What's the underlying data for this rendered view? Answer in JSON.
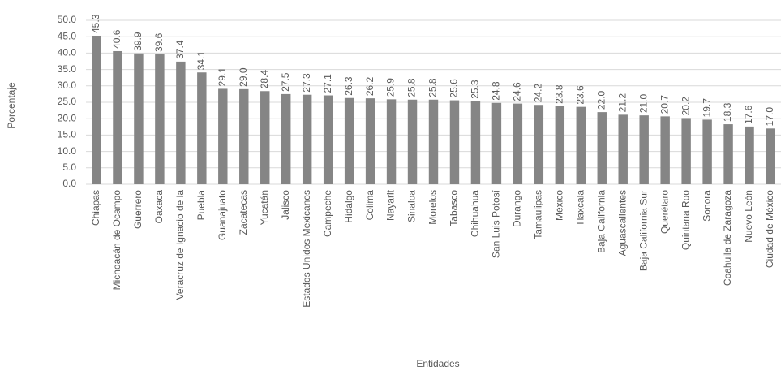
{
  "chart_data": {
    "type": "bar",
    "x_label": "Entidades",
    "y_label": "Porcentaje",
    "categories": [
      "Chiapas",
      "Michoacán de Ocampo",
      "Guerrero",
      "Oaxaca",
      "Veracruz de Ignacio de la",
      "Puebla",
      "Guanajuato",
      "Zacatecas",
      "Yucatán",
      "Jalisco",
      "Estados Unidos Mexicanos",
      "Campeche",
      "Hidalgo",
      "Colima",
      "Nayarit",
      "Sinaloa",
      "Morelos",
      "Tabasco",
      "Chihuahua",
      "San Luis Potosí",
      "Durango",
      "Tamaulipas",
      "México",
      "Tlaxcala",
      "Baja California",
      "Aguascalientes",
      "Baja California Sur",
      "Querétaro",
      "Quintana Roo",
      "Sonora",
      "Coahuila de Zaragoza",
      "Nuevo León",
      "Ciudad de México"
    ],
    "values": [
      45.3,
      40.6,
      39.9,
      39.6,
      37.4,
      34.1,
      29.1,
      29.0,
      28.4,
      27.5,
      27.3,
      27.1,
      26.3,
      26.2,
      25.9,
      25.8,
      25.8,
      25.6,
      25.3,
      24.8,
      24.6,
      24.2,
      23.8,
      23.6,
      22.0,
      21.2,
      21.0,
      20.7,
      20.2,
      19.7,
      18.3,
      17.6,
      17.0
    ],
    "value_labels": [
      "45.3",
      "40.6",
      "39.9",
      "39.6",
      "37.4",
      "34.1",
      "29.1",
      "29.0",
      "28.4",
      "27.5",
      "27.3",
      "27.1",
      "26.3",
      "26.2",
      "25.9",
      "25.8",
      "25.8",
      "25.6",
      "25.3",
      "24.8",
      "24.6",
      "24.2",
      "23.8",
      "23.6",
      "22.0",
      "21.2",
      "21.0",
      "20.7",
      "20.2",
      "19.7",
      "18.3",
      "17.6",
      "17.0"
    ],
    "color": "#858585",
    "ylim": [
      0,
      50
    ],
    "yticks": [
      {
        "value": 0,
        "label": "0.0"
      },
      {
        "value": 5,
        "label": "5.0"
      },
      {
        "value": 10,
        "label": "10.0"
      },
      {
        "value": 15,
        "label": "15.0"
      },
      {
        "value": 20,
        "label": "20.0"
      },
      {
        "value": 25,
        "label": "25.0"
      },
      {
        "value": 30,
        "label": "30.0"
      },
      {
        "value": 35,
        "label": "35.0"
      },
      {
        "value": 40,
        "label": "40.0"
      },
      {
        "value": 45,
        "label": "45.0"
      },
      {
        "value": 50,
        "label": "50.0"
      }
    ],
    "grid": true
  }
}
